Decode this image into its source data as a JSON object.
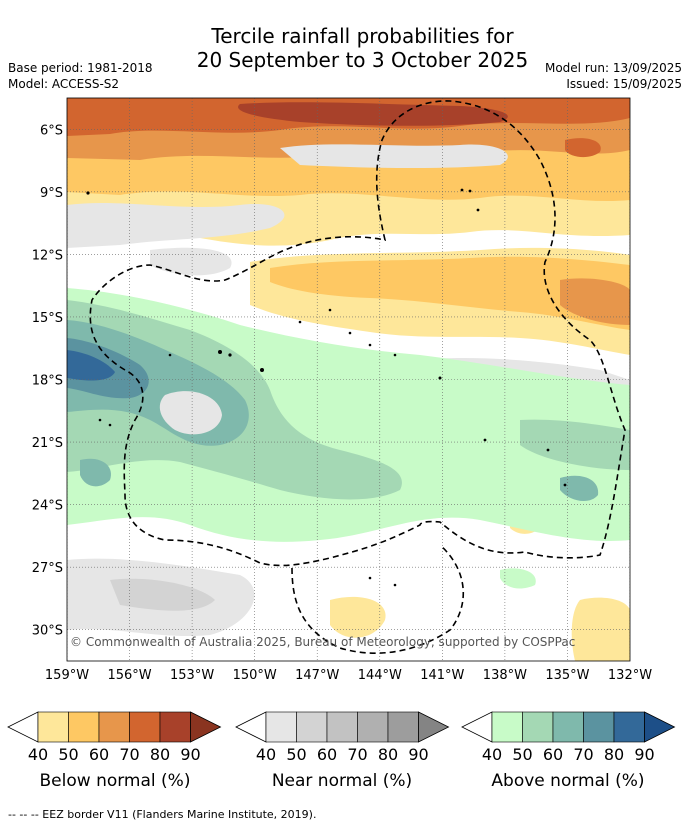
{
  "header": {
    "title_line1": "Tercile rainfall probabilities for",
    "title_line2": "20 September to 3 October 2025",
    "base_period": "Base period: 1981-2018",
    "model": "Model: ACCESS-S2",
    "model_run": "Model run: 13/09/2025",
    "issued": "Issued: 15/09/2025"
  },
  "map": {
    "lat_labels": [
      "6°S",
      "9°S",
      "12°S",
      "15°S",
      "18°S",
      "21°S",
      "24°S",
      "27°S",
      "30°S"
    ],
    "lat_values": [
      -6,
      -9,
      -12,
      -15,
      -18,
      -21,
      -24,
      -27,
      -30
    ],
    "lon_labels": [
      "159°W",
      "156°W",
      "153°W",
      "150°W",
      "147°W",
      "144°W",
      "141°W",
      "138°W",
      "135°W",
      "132°W"
    ],
    "lon_values": [
      -159,
      -156,
      -153,
      -150,
      -147,
      -144,
      -141,
      -138,
      -135,
      -132
    ],
    "extent": {
      "lon_min": -159,
      "lon_max": -132,
      "lat_min": -31.5,
      "lat_max": -4.5
    },
    "copyright": "© Commonwealth of Australia 2025, Bureau of Meteorology, supported by COSPPac"
  },
  "legend": {
    "below": {
      "caption": "Below normal (%)",
      "ticks": [
        "40",
        "50",
        "60",
        "70",
        "80",
        "90"
      ],
      "colors": [
        "#ffffff",
        "#fee79a",
        "#fec863",
        "#e7964b",
        "#d2652f",
        "#a8412a",
        "#8a3420"
      ]
    },
    "near": {
      "caption": "Near normal (%)",
      "ticks": [
        "40",
        "50",
        "60",
        "70",
        "80",
        "90"
      ],
      "colors": [
        "#ffffff",
        "#e6e6e6",
        "#d3d3d3",
        "#c2c2c2",
        "#b0b0b0",
        "#9d9d9d",
        "#848484"
      ]
    },
    "above": {
      "caption": "Above normal (%)",
      "ticks": [
        "40",
        "50",
        "60",
        "70",
        "80",
        "90"
      ],
      "colors": [
        "#ffffff",
        "#c8fbc8",
        "#a4d8b4",
        "#7fb9ac",
        "#5b93a0",
        "#336999",
        "#1d4f88"
      ]
    }
  },
  "footnote": "-- -- -- EEZ border V11 (Flanders Marine Institute, 2019)."
}
